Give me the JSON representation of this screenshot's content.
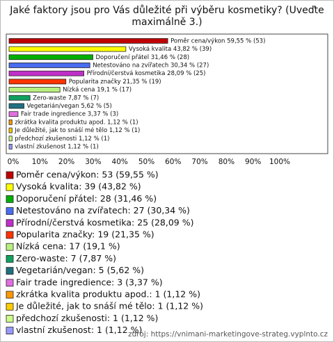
{
  "chart_data": {
    "type": "bar",
    "orientation": "horizontal",
    "title": "Jaké faktory jsou pro Vás důležité při výběru kosmetiky? (Uveďte maximálně 3.)",
    "values": [
      59.55,
      43.82,
      31.46,
      30.34,
      28.09,
      21.35,
      19.1,
      7.87,
      5.62,
      3.37,
      1.12,
      1.12,
      1.12,
      1.12
    ],
    "value_labels": [
      "Poměr cena/výkon 59,55 % (53)",
      "Vysoká kvalita 43,82 % (39)",
      "Doporučení přátel 31,46 % (28)",
      "Netestováno na zvířatech 30,34 % (27)",
      "Přírodní/čerstvá kosmetika 28,09 % (25)",
      "Popularita značky 21,35 % (19)",
      "Nízká cena 19,1 % (17)",
      "Zero-waste 7,87 % (7)",
      "Vegetarián/vegan 5,62 % (5)",
      "Fair trade ingredience 3,37 % (3)",
      "zkrátka kvalita produktu apod. 1,12 % (1)",
      "Je důležité, jak to snáší mé tělo 1,12 % (1)",
      "předchozí zkušenosti 1,12 % (1)",
      "vlastní zkušenost 1,12 % (1)"
    ],
    "legend_labels": [
      "Poměr cena/výkon: 53 (59,55 %)",
      "Vysoká kvalita: 39 (43,82 %)",
      "Doporučení přátel: 28 (31,46 %)",
      "Netestováno na zvířatech: 27 (30,34 %)",
      "Přírodní/čerstvá kosmetika: 25 (28,09 %)",
      "Popularita značky: 19 (21,35 %)",
      "Nízká cena: 17 (19,1 %)",
      "Zero-waste: 7 (7,87 %)",
      "Vegetarián/vegan: 5 (5,62 %)",
      "Fair trade ingredience: 3 (3,37 %)",
      "zkrátka kvalita produktu apod.: 1 (1,12 %)",
      "Je důležité, jak to snáší mé tělo: 1 (1,12 %)",
      "předchozí zkušenosti: 1 (1,12 %)",
      "vlastní zkušenost: 1 (1,12 %)"
    ],
    "colors": [
      "#c00000",
      "#ffff00",
      "#00b000",
      "#4a6cf0",
      "#c030c8",
      "#ff3300",
      "#b8f080",
      "#10a060",
      "#207080",
      "#e070e0",
      "#ff9900",
      "#ffcc00",
      "#ccff88",
      "#9999ff"
    ],
    "xlim": [
      0,
      100
    ],
    "xticks": [
      {
        "value": 0,
        "label": "0%"
      },
      {
        "value": 10,
        "label": "10%"
      },
      {
        "value": 20,
        "label": "20%"
      },
      {
        "value": 30,
        "label": "30%"
      },
      {
        "value": 40,
        "label": "40%"
      },
      {
        "value": 50,
        "label": "50%"
      },
      {
        "value": 60,
        "label": "60%"
      },
      {
        "value": 70,
        "label": "70%"
      },
      {
        "value": 80,
        "label": "80%"
      },
      {
        "value": 90,
        "label": "90%"
      },
      {
        "value": 100,
        "label": "100%"
      }
    ],
    "grid": false,
    "source": "zdroj: https://vnimani-marketingove-strateg.vyplnto.cz"
  }
}
